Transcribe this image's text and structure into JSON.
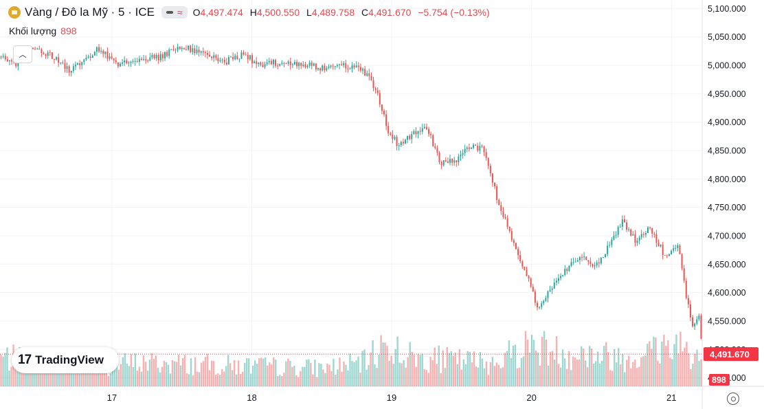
{
  "header": {
    "symbol": "Vàng / Đô la Mỹ · 5 · ICE",
    "open_key": "O",
    "open": "4,497.474",
    "high_key": "H",
    "high": "4,500.550",
    "low_key": "L",
    "low": "4,489.758",
    "close_key": "C",
    "close": "4,491.670",
    "change": "−5.754 (−0.13%)"
  },
  "volume_label": {
    "label": "Khối lượng",
    "value": "898"
  },
  "watermark": {
    "text": "TradingView",
    "mark": "17"
  },
  "colors": {
    "up": "#26a69a",
    "down": "#ef5350",
    "grid": "#f0f3fa",
    "price_tag": "#f23645"
  },
  "chart_data": {
    "type": "candlestick",
    "y_ticks": [
      {
        "v": 5100,
        "label": "5,100.000"
      },
      {
        "v": 5050,
        "label": "5,050.000"
      },
      {
        "v": 5000,
        "label": "5,000.000"
      },
      {
        "v": 4950,
        "label": "4,950.000"
      },
      {
        "v": 4900,
        "label": "4,900.000"
      },
      {
        "v": 4850,
        "label": "4,850.000"
      },
      {
        "v": 4800,
        "label": "4,800.000"
      },
      {
        "v": 4750,
        "label": "4,750.000"
      },
      {
        "v": 4700,
        "label": "4,700.000"
      },
      {
        "v": 4650,
        "label": "4,650.000"
      },
      {
        "v": 4600,
        "label": "4,600.000"
      },
      {
        "v": 4550,
        "label": "4,550.000"
      },
      {
        "v": 4500,
        "label": "4,500.000"
      },
      {
        "v": 4450,
        "label": "4,450.000"
      }
    ],
    "ylim": [
      4435,
      5115
    ],
    "x_ticks": [
      {
        "t": 0.8,
        "label": "17"
      },
      {
        "t": 1.8,
        "label": "18"
      },
      {
        "t": 2.8,
        "label": "19"
      },
      {
        "t": 3.8,
        "label": "20"
      },
      {
        "t": 4.8,
        "label": "21"
      }
    ],
    "xlim": [
      0,
      5.02
    ],
    "trend": [
      {
        "t": 0.0,
        "p": 5015
      },
      {
        "t": 0.1,
        "p": 5000
      },
      {
        "t": 0.2,
        "p": 5030
      },
      {
        "t": 0.35,
        "p": 5020
      },
      {
        "t": 0.5,
        "p": 4990
      },
      {
        "t": 0.7,
        "p": 5030
      },
      {
        "t": 0.85,
        "p": 5000
      },
      {
        "t": 1.0,
        "p": 5010
      },
      {
        "t": 1.15,
        "p": 5015
      },
      {
        "t": 1.3,
        "p": 5035
      },
      {
        "t": 1.45,
        "p": 5020
      },
      {
        "t": 1.6,
        "p": 5005
      },
      {
        "t": 1.75,
        "p": 5020
      },
      {
        "t": 1.85,
        "p": 5000
      },
      {
        "t": 2.0,
        "p": 5005
      },
      {
        "t": 2.2,
        "p": 5000
      },
      {
        "t": 2.35,
        "p": 4995
      },
      {
        "t": 2.55,
        "p": 5000
      },
      {
        "t": 2.62,
        "p": 4985
      },
      {
        "t": 2.7,
        "p": 4950
      },
      {
        "t": 2.78,
        "p": 4880
      },
      {
        "t": 2.85,
        "p": 4860
      },
      {
        "t": 2.95,
        "p": 4880
      },
      {
        "t": 3.05,
        "p": 4890
      },
      {
        "t": 3.15,
        "p": 4830
      },
      {
        "t": 3.25,
        "p": 4830
      },
      {
        "t": 3.35,
        "p": 4855
      },
      {
        "t": 3.45,
        "p": 4855
      },
      {
        "t": 3.55,
        "p": 4770
      },
      {
        "t": 3.65,
        "p": 4700
      },
      {
        "t": 3.75,
        "p": 4640
      },
      {
        "t": 3.85,
        "p": 4570
      },
      {
        "t": 3.95,
        "p": 4610
      },
      {
        "t": 4.05,
        "p": 4640
      },
      {
        "t": 4.15,
        "p": 4665
      },
      {
        "t": 4.25,
        "p": 4645
      },
      {
        "t": 4.35,
        "p": 4680
      },
      {
        "t": 4.45,
        "p": 4725
      },
      {
        "t": 4.55,
        "p": 4690
      },
      {
        "t": 4.65,
        "p": 4715
      },
      {
        "t": 4.75,
        "p": 4665
      },
      {
        "t": 4.85,
        "p": 4685
      },
      {
        "t": 4.9,
        "p": 4600
      },
      {
        "t": 4.95,
        "p": 4545
      },
      {
        "t": 5.0,
        "p": 4560
      },
      {
        "t": 5.02,
        "p": 4491.67
      }
    ],
    "volume_profile": [
      {
        "t": 0.0,
        "v": 0.55
      },
      {
        "t": 0.7,
        "v": 0.4
      },
      {
        "t": 1.0,
        "v": 0.45
      },
      {
        "t": 2.3,
        "v": 0.35
      },
      {
        "t": 2.6,
        "v": 0.45
      },
      {
        "t": 2.75,
        "v": 0.8
      },
      {
        "t": 2.95,
        "v": 0.55
      },
      {
        "t": 3.5,
        "v": 0.45
      },
      {
        "t": 3.8,
        "v": 0.8
      },
      {
        "t": 4.0,
        "v": 0.65
      },
      {
        "t": 4.5,
        "v": 0.55
      },
      {
        "t": 4.85,
        "v": 0.85
      },
      {
        "t": 5.02,
        "v": 0.5
      }
    ],
    "last_price": {
      "v": 4491.67,
      "label": "4,491.670"
    },
    "last_volume": {
      "label": "898"
    }
  }
}
